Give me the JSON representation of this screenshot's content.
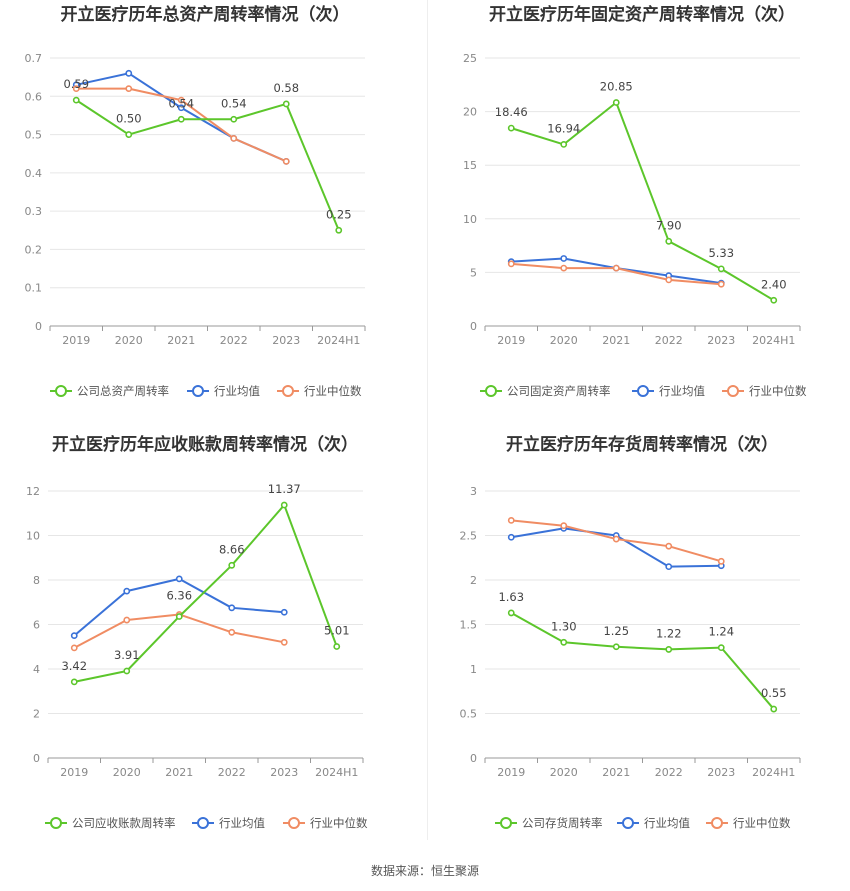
{
  "colors": {
    "company": "#5cc62b",
    "average": "#3a72d8",
    "median": "#f08c63",
    "grid": "#e6e6e6",
    "axis": "#999999"
  },
  "source_text": "数据来源：恒生聚源",
  "chart_data": [
    {
      "type": "line",
      "title": "开立医疗历年总资产周转率情况（次）",
      "categories": [
        "2019",
        "2020",
        "2021",
        "2022",
        "2023",
        "2024H1"
      ],
      "ylim": [
        0,
        0.7
      ],
      "yticks": [
        "0",
        "0.1",
        "0.2",
        "0.3",
        "0.4",
        "0.5",
        "0.6",
        "0.7"
      ],
      "grid": true,
      "legend": "bottom",
      "series": [
        {
          "name": "公司总资产周转率",
          "role": "company",
          "values": [
            0.59,
            0.5,
            0.54,
            0.54,
            0.58,
            0.25
          ],
          "labels": [
            "0.59",
            "0.50",
            "0.54",
            "0.54",
            "0.58",
            "0.25"
          ]
        },
        {
          "name": "行业均值",
          "role": "average",
          "values": [
            0.63,
            0.66,
            0.57,
            0.49,
            0.43,
            null
          ]
        },
        {
          "name": "行业中位数",
          "role": "median",
          "values": [
            0.62,
            0.62,
            0.59,
            0.49,
            0.43,
            null
          ]
        }
      ]
    },
    {
      "type": "line",
      "title": "开立医疗历年固定资产周转率情况（次）",
      "categories": [
        "2019",
        "2020",
        "2021",
        "2022",
        "2023",
        "2024H1"
      ],
      "ylim": [
        0,
        25
      ],
      "yticks": [
        "0",
        "5",
        "10",
        "15",
        "20",
        "25"
      ],
      "grid": true,
      "legend": "bottom",
      "series": [
        {
          "name": "公司固定资产周转率",
          "role": "company",
          "values": [
            18.46,
            16.94,
            20.85,
            7.9,
            5.33,
            2.4
          ],
          "labels": [
            "18.46",
            "16.94",
            "20.85",
            "7.90",
            "5.33",
            "2.40"
          ]
        },
        {
          "name": "行业均值",
          "role": "average",
          "values": [
            6.0,
            6.3,
            5.4,
            4.7,
            4.0,
            null
          ]
        },
        {
          "name": "行业中位数",
          "role": "median",
          "values": [
            5.8,
            5.4,
            5.4,
            4.3,
            3.9,
            null
          ]
        }
      ]
    },
    {
      "type": "line",
      "title": "开立医疗历年应收账款周转率情况（次）",
      "categories": [
        "2019",
        "2020",
        "2021",
        "2022",
        "2023",
        "2024H1"
      ],
      "ylim": [
        0,
        12
      ],
      "yticks": [
        "0",
        "2",
        "4",
        "6",
        "8",
        "10",
        "12"
      ],
      "grid": true,
      "legend": "bottom",
      "series": [
        {
          "name": "公司应收账款周转率",
          "role": "company",
          "values": [
            3.42,
            3.91,
            6.36,
            8.66,
            11.37,
            5.01
          ],
          "labels": [
            "3.42",
            "3.91",
            "6.36",
            "8.66",
            "11.37",
            "5.01"
          ]
        },
        {
          "name": "行业均值",
          "role": "average",
          "values": [
            5.5,
            7.5,
            8.05,
            6.75,
            6.55,
            null
          ]
        },
        {
          "name": "行业中位数",
          "role": "median",
          "values": [
            4.95,
            6.2,
            6.45,
            5.65,
            5.2,
            null
          ]
        }
      ]
    },
    {
      "type": "line",
      "title": "开立医疗历年存货周转率情况（次）",
      "categories": [
        "2019",
        "2020",
        "2021",
        "2022",
        "2023",
        "2024H1"
      ],
      "ylim": [
        0,
        3
      ],
      "yticks": [
        "0",
        "0.5",
        "1",
        "1.5",
        "2",
        "2.5",
        "3"
      ],
      "grid": true,
      "legend": "bottom",
      "series": [
        {
          "name": "公司存货周转率",
          "role": "company",
          "values": [
            1.63,
            1.3,
            1.25,
            1.22,
            1.24,
            0.55
          ],
          "labels": [
            "1.63",
            "1.30",
            "1.25",
            "1.22",
            "1.24",
            "0.55"
          ]
        },
        {
          "name": "行业均值",
          "role": "average",
          "values": [
            2.48,
            2.58,
            2.5,
            2.15,
            2.16,
            null
          ]
        },
        {
          "name": "行业中位数",
          "role": "median",
          "values": [
            2.67,
            2.61,
            2.46,
            2.38,
            2.21,
            null
          ]
        }
      ]
    }
  ]
}
